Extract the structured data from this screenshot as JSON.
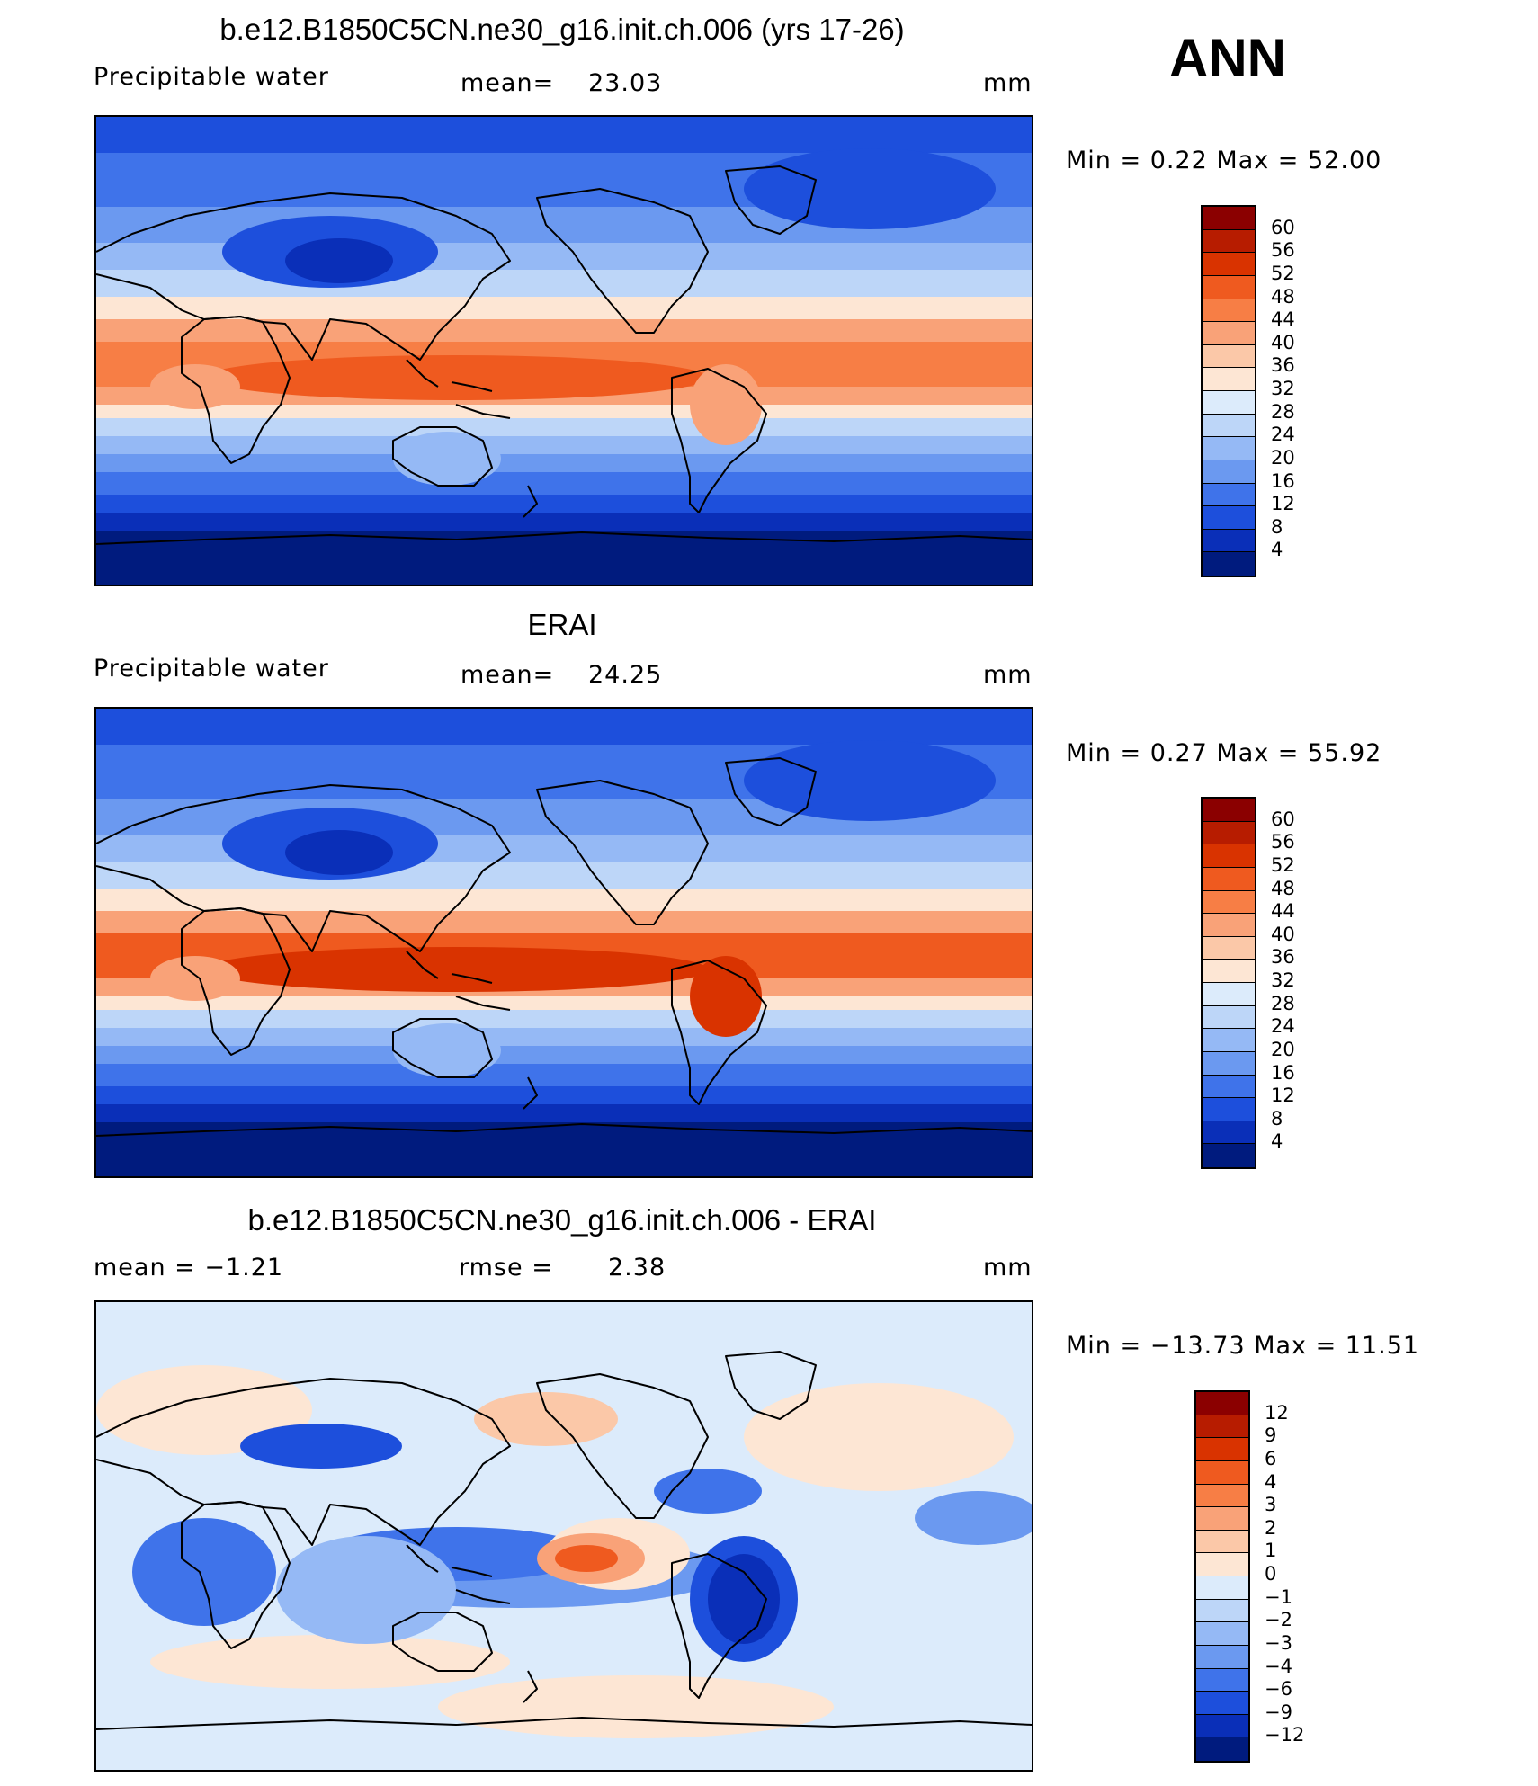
{
  "season": "ANN",
  "units": "mm",
  "panels": [
    {
      "title": "b.e12.B1850C5CN.ne30_g16.init.ch.006 (yrs 17-26)",
      "variable": "Precipitable  water",
      "stat_label": "mean=",
      "stat_value": "23.03",
      "units": "mm",
      "minmax": "Min  =     0.22  Max  =    52.00",
      "colorbar": [
        "60",
        "56",
        "52",
        "48",
        "44",
        "40",
        "36",
        "32",
        "28",
        "24",
        "20",
        "16",
        "12",
        "8",
        "4"
      ],
      "colors": [
        "#8b0000",
        "#b71c00",
        "#d93300",
        "#ef5a1f",
        "#f77e45",
        "#f9a278",
        "#fbc8a8",
        "#fde6d4",
        "#dcebfb",
        "#bdd6f8",
        "#95b9f5",
        "#6b99f0",
        "#3f73ea",
        "#1d4fdc",
        "#0a2fb8",
        "#001b7e"
      ],
      "map_type": "model"
    },
    {
      "title": "ERAI",
      "variable": "Precipitable  water",
      "stat_label": "mean=",
      "stat_value": "24.25",
      "units": "mm",
      "minmax": "Min  =     0.27  Max  =    55.92",
      "colorbar": [
        "60",
        "56",
        "52",
        "48",
        "44",
        "40",
        "36",
        "32",
        "28",
        "24",
        "20",
        "16",
        "12",
        "8",
        "4"
      ],
      "colors": [
        "#8b0000",
        "#b71c00",
        "#d93300",
        "#ef5a1f",
        "#f77e45",
        "#f9a278",
        "#fbc8a8",
        "#fde6d4",
        "#dcebfb",
        "#bdd6f8",
        "#95b9f5",
        "#6b99f0",
        "#3f73ea",
        "#1d4fdc",
        "#0a2fb8",
        "#001b7e"
      ],
      "map_type": "obs"
    },
    {
      "title": "b.e12.B1850C5CN.ne30_g16.init.ch.006 - ERAI",
      "variable": "mean  =    −1.21",
      "stat_label": "rmse  =",
      "stat_value": "2.38",
      "units": "mm",
      "minmax": "Min  = −13.73  Max  =    11.51",
      "colorbar": [
        "12",
        "9",
        "6",
        "4",
        "3",
        "2",
        "1",
        "0",
        "−1",
        "−2",
        "−3",
        "−4",
        "−6",
        "−9",
        "−12"
      ],
      "colors": [
        "#8b0000",
        "#b71c00",
        "#d93300",
        "#ef5a1f",
        "#f77e45",
        "#f9a278",
        "#fbc8a8",
        "#fde6d4",
        "#dcebfb",
        "#bdd6f8",
        "#95b9f5",
        "#6b99f0",
        "#3f73ea",
        "#1d4fdc",
        "#0a2fb8",
        "#001b7e"
      ],
      "map_type": "diff"
    }
  ]
}
